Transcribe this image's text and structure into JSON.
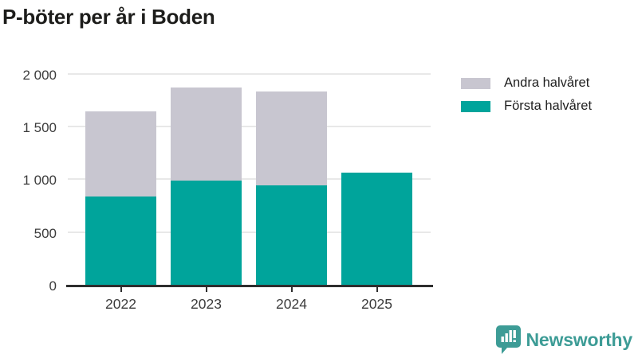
{
  "title": "P-böter per år i Boden",
  "chart_data": {
    "type": "bar",
    "stacked": true,
    "title": "P-böter per år i Boden",
    "categories": [
      "2022",
      "2023",
      "2024",
      "2025"
    ],
    "series": [
      {
        "name": "Första halvåret",
        "color": "#00a49b",
        "values": [
          840,
          990,
          940,
          1065
        ]
      },
      {
        "name": "Andra halvåret",
        "color": "#c8c6d0",
        "values": [
          805,
          880,
          895,
          0
        ]
      }
    ],
    "xlabel": "",
    "ylabel": "",
    "ylim": [
      0,
      2000
    ],
    "yticks": [
      {
        "value": 0,
        "label": "0"
      },
      {
        "value": 500,
        "label": "500"
      },
      {
        "value": 1000,
        "label": "1 000"
      },
      {
        "value": 1500,
        "label": "1 500"
      },
      {
        "value": 2000,
        "label": "2 000"
      }
    ],
    "grid": true,
    "legend_position": "top-right"
  },
  "legend": {
    "items": [
      {
        "label": "Andra halvåret",
        "color": "#c8c6d0"
      },
      {
        "label": "Första halvåret",
        "color": "#00a49b"
      }
    ]
  },
  "branding": {
    "logo_text": "Newsworthy",
    "logo_color": "#3d9c96",
    "logo_icon": "bar-chart-speech-bubble-icon"
  },
  "colors": {
    "first_half": "#00a49b",
    "second_half": "#c8c6d0",
    "gridline": "#e8e8e8",
    "axis": "#2e2e2e",
    "title_text": "#1d1d1b"
  }
}
